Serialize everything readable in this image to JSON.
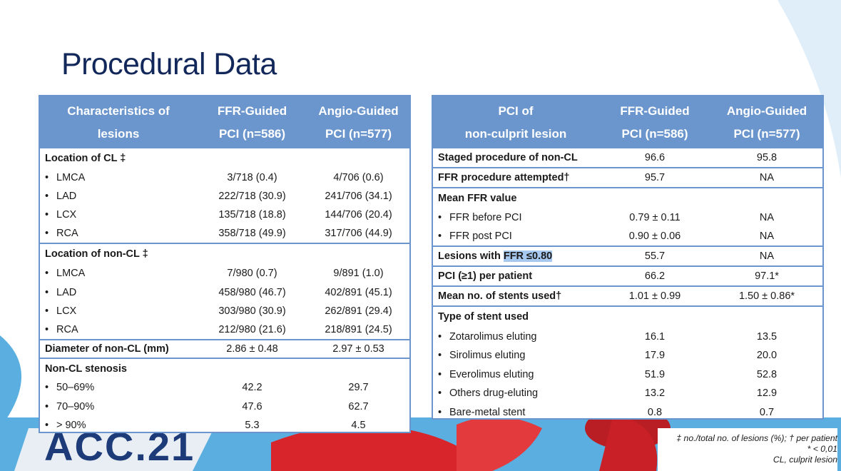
{
  "title": "Procedural Data",
  "left_table": {
    "headers": [
      [
        "Characteristics of",
        "lesions"
      ],
      [
        "FFR-Guided",
        "PCI (n=586)"
      ],
      [
        "Angio-Guided",
        "PCI (n=577)"
      ]
    ],
    "rows": [
      {
        "label": "Location of CL ‡",
        "c1": "",
        "c2": "",
        "bold": true,
        "bullet": false,
        "end": false
      },
      {
        "label": "LMCA",
        "c1": "3/718 (0.4)",
        "c2": "4/706 (0.6)",
        "bold": false,
        "bullet": true,
        "end": false
      },
      {
        "label": "LAD",
        "c1": "222/718 (30.9)",
        "c2": "241/706 (34.1)",
        "bold": false,
        "bullet": true,
        "end": false
      },
      {
        "label": "LCX",
        "c1": "135/718 (18.8)",
        "c2": "144/706 (20.4)",
        "bold": false,
        "bullet": true,
        "end": false
      },
      {
        "label": "RCA",
        "c1": "358/718 (49.9)",
        "c2": "317/706 (44.9)",
        "bold": false,
        "bullet": true,
        "end": true
      },
      {
        "label": "Location of non-CL ‡",
        "c1": "",
        "c2": "",
        "bold": true,
        "bullet": false,
        "end": false
      },
      {
        "label": "LMCA",
        "c1": "7/980 (0.7)",
        "c2": "9/891 (1.0)",
        "bold": false,
        "bullet": true,
        "end": false
      },
      {
        "label": "LAD",
        "c1": "458/980 (46.7)",
        "c2": "402/891 (45.1)",
        "bold": false,
        "bullet": true,
        "end": false
      },
      {
        "label": "LCX",
        "c1": "303/980 (30.9)",
        "c2": "262/891 (29.4)",
        "bold": false,
        "bullet": true,
        "end": false
      },
      {
        "label": "RCA",
        "c1": "212/980 (21.6)",
        "c2": "218/891 (24.5)",
        "bold": false,
        "bullet": true,
        "end": true
      },
      {
        "label": "Diameter of non-CL (mm)",
        "c1": "2.86 ± 0.48",
        "c2": "2.97 ± 0.53",
        "bold": true,
        "bullet": false,
        "end": true
      },
      {
        "label": "Non-CL stenosis",
        "c1": "",
        "c2": "",
        "bold": true,
        "bullet": false,
        "end": false
      },
      {
        "label": "50–69%",
        "c1": "42.2",
        "c2": "29.7",
        "bold": false,
        "bullet": true,
        "end": false
      },
      {
        "label": "70–90%",
        "c1": "47.6",
        "c2": "62.7",
        "bold": false,
        "bullet": true,
        "end": false
      },
      {
        "label": "> 90%",
        "c1": "5.3",
        "c2": "4.5",
        "bold": false,
        "bullet": true,
        "end": false
      }
    ]
  },
  "right_table": {
    "headers": [
      [
        "PCI of",
        "non-culprit lesion"
      ],
      [
        "FFR-Guided",
        "PCI (n=586)"
      ],
      [
        "Angio-Guided",
        "PCI (n=577)"
      ]
    ],
    "rows": [
      {
        "label": "Staged procedure of non-CL",
        "c1": "96.6",
        "c2": "95.8",
        "bold": true,
        "bullet": false,
        "end": true
      },
      {
        "label": "FFR procedure attempted†",
        "c1": "95.7",
        "c2": "NA",
        "bold": true,
        "bullet": false,
        "end": true
      },
      {
        "label": "Mean FFR value",
        "c1": "",
        "c2": "",
        "bold": true,
        "bullet": false,
        "end": false
      },
      {
        "label": "FFR before PCI",
        "c1": "0.79 ± 0.11",
        "c2": "NA",
        "bold": false,
        "bullet": true,
        "end": false
      },
      {
        "label": "FFR post PCI",
        "c1": "0.90 ± 0.06",
        "c2": "NA",
        "bold": false,
        "bullet": true,
        "end": true
      },
      {
        "label": "Lesions with ",
        "label_hl": "FFR ≤0.80",
        "c1": "55.7",
        "c2": "NA",
        "bold": true,
        "bullet": false,
        "end": true
      },
      {
        "label": "PCI (≥1) per patient",
        "c1": "66.2",
        "c2": "97.1*",
        "bold": true,
        "bullet": false,
        "end": true
      },
      {
        "label": "Mean no. of stents used†",
        "c1": "1.01 ± 0.99",
        "c2": "1.50 ± 0.86*",
        "bold": true,
        "bullet": false,
        "end": true
      },
      {
        "label": "Type of stent used",
        "c1": "",
        "c2": "",
        "bold": true,
        "bullet": false,
        "end": false
      },
      {
        "label": "Zotarolimus eluting",
        "c1": "16.1",
        "c2": "13.5",
        "bold": false,
        "bullet": true,
        "end": false
      },
      {
        "label": "Sirolimus eluting",
        "c1": "17.9",
        "c2": "20.0",
        "bold": false,
        "bullet": true,
        "end": false
      },
      {
        "label": "Everolimus eluting",
        "c1": "51.9",
        "c2": "52.8",
        "bold": false,
        "bullet": true,
        "end": false
      },
      {
        "label": "Others drug-eluting",
        "c1": "13.2",
        "c2": "12.9",
        "bold": false,
        "bullet": true,
        "end": false
      },
      {
        "label": "Bare-metal stent",
        "c1": "0.8",
        "c2": "0.7",
        "bold": false,
        "bullet": true,
        "end": false
      }
    ]
  },
  "footnotes": [
    "‡ no./total no. of lesions (%); † per patient",
    "* < 0,01",
    "CL, culprit lesion"
  ],
  "logo_text": "ACC.21",
  "colors": {
    "header_bg": "#6a95cd",
    "title": "#13285a",
    "highlight": "#a7c8ef",
    "background_blue": "#5aaee0",
    "accent_red": "#d8252b"
  }
}
